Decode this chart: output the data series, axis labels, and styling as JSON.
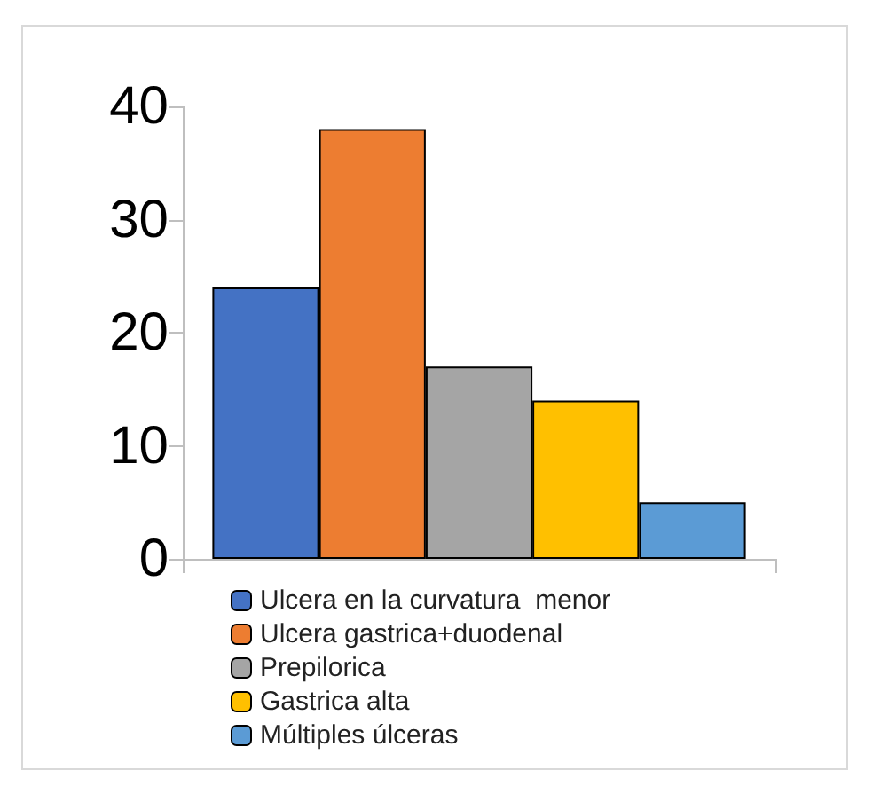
{
  "chart_data": {
    "type": "bar",
    "categories": [
      null
    ],
    "series": [
      {
        "name": "Ulcera en la curvatura  menor",
        "color": "#4472c4",
        "values": [
          24
        ]
      },
      {
        "name": "Ulcera gastrica+duodenal",
        "color": "#ed7d31",
        "values": [
          38
        ]
      },
      {
        "name": "Prepilorica",
        "color": "#a5a5a5",
        "values": [
          17
        ]
      },
      {
        "name": "Gastrica alta",
        "color": "#ffc000",
        "values": [
          14
        ]
      },
      {
        "name": "Múltiples úlceras",
        "color": "#5b9bd5",
        "values": [
          5
        ]
      }
    ],
    "ylim": [
      0,
      40
    ],
    "yticks": [
      0,
      10,
      20,
      30,
      40
    ],
    "grid": false,
    "legend": "bottom"
  }
}
